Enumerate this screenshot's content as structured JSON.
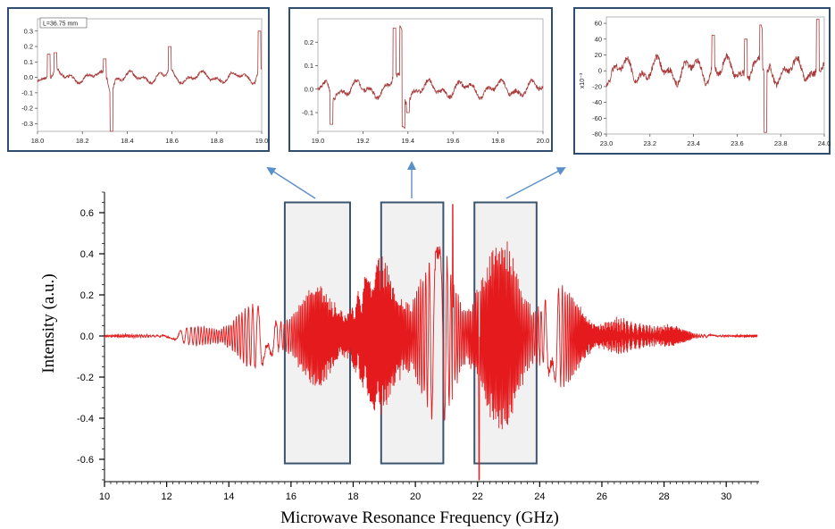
{
  "colors": {
    "main_line": "#e41a1c",
    "inset_line": "#a83a3a",
    "inset_border": "#2f4d6e",
    "box_border": "#3b556e",
    "box_fill": "#f1f1f1",
    "arrow": "#5b8fc9"
  },
  "chart_data": [
    {
      "id": "main",
      "type": "line",
      "title": "",
      "xlabel": "Microwave Resonance Frequency (GHz)",
      "ylabel": "Intensity (a.u.)",
      "xlim": [
        10,
        31
      ],
      "ylim": [
        -0.7,
        0.7
      ],
      "xticks": [
        "10",
        "12",
        "14",
        "16",
        "18",
        "20",
        "22",
        "24",
        "26",
        "28",
        "30"
      ],
      "yticks": [
        "0.6",
        "0.4",
        "0.2",
        "0.0",
        "-0.2",
        "-0.4",
        "-0.6"
      ],
      "envelope": {
        "x": [
          10,
          12,
          13,
          14,
          15,
          16,
          17,
          18,
          19,
          20,
          21,
          21.6,
          22,
          23,
          24,
          25,
          26,
          27,
          27.6,
          28,
          28.5,
          29,
          31
        ],
        "y": [
          0.005,
          0.012,
          0.06,
          0.12,
          0.19,
          0.21,
          0.28,
          0.35,
          0.44,
          0.48,
          0.47,
          0.32,
          0.56,
          0.5,
          0.35,
          0.24,
          0.16,
          0.07,
          0.11,
          0.14,
          0.05,
          0.01,
          0.005
        ]
      },
      "highlight_ranges": [
        [
          15.8,
          17.9
        ],
        [
          18.9,
          20.9
        ],
        [
          21.9,
          23.9
        ]
      ],
      "series": [
        {
          "values_description": "",
          "x_range": [
            10,
            31
          ]
        }
      ]
    },
    {
      "id": "inset1",
      "type": "line",
      "legend_text": "L=36.75 mm",
      "xlim": [
        18.0,
        19.0
      ],
      "ylim": [
        -0.35,
        0.38
      ],
      "xticks": [
        "18.0",
        "18.2",
        "18.4",
        "18.6",
        "18.8",
        "19.0"
      ],
      "yticks": [
        "0.3",
        "0.2",
        "0.1",
        "0.0",
        "-0.1",
        "-0.2",
        "-0.3"
      ],
      "spikes": [
        {
          "x": 18.05,
          "y": 0.15
        },
        {
          "x": 18.08,
          "y": 0.16
        },
        {
          "x": 18.33,
          "y": -0.35
        },
        {
          "x": 18.3,
          "y": 0.12
        },
        {
          "x": 18.59,
          "y": 0.2
        },
        {
          "x": 18.99,
          "y": 0.3
        }
      ],
      "amplitude": 0.04
    },
    {
      "id": "inset2",
      "type": "line",
      "xlim": [
        19.0,
        20.0
      ],
      "ylim": [
        -0.18,
        0.3
      ],
      "xticks": [
        "19.0",
        "19.2",
        "19.4",
        "19.6",
        "19.8",
        "20.0"
      ],
      "yticks": [
        "0.2",
        "0.1",
        "0.0",
        "-0.1"
      ],
      "spikes": [
        {
          "x": 19.34,
          "y": 0.26
        },
        {
          "x": 19.37,
          "y": 0.28
        },
        {
          "x": 19.38,
          "y": -0.16
        },
        {
          "x": 19.06,
          "y": -0.15
        },
        {
          "x": 19.4,
          "y": -0.1
        }
      ],
      "amplitude": 0.04
    },
    {
      "id": "inset3",
      "type": "line",
      "ylabel": "x10⁻³",
      "xlim": [
        23.0,
        24.0
      ],
      "ylim": [
        -80,
        68
      ],
      "xticks": [
        "23.0",
        "23.2",
        "23.4",
        "23.6",
        "23.8",
        "24.0"
      ],
      "yticks": [
        "60",
        "40",
        "20",
        "0",
        "-20",
        "-40",
        "-60",
        "-80"
      ],
      "spikes": [
        {
          "x": 23.71,
          "y": 58
        },
        {
          "x": 23.73,
          "y": -78
        },
        {
          "x": 23.97,
          "y": 65
        },
        {
          "x": 23.49,
          "y": 45
        },
        {
          "x": 23.64,
          "y": 40
        }
      ],
      "amplitude": 18
    }
  ]
}
